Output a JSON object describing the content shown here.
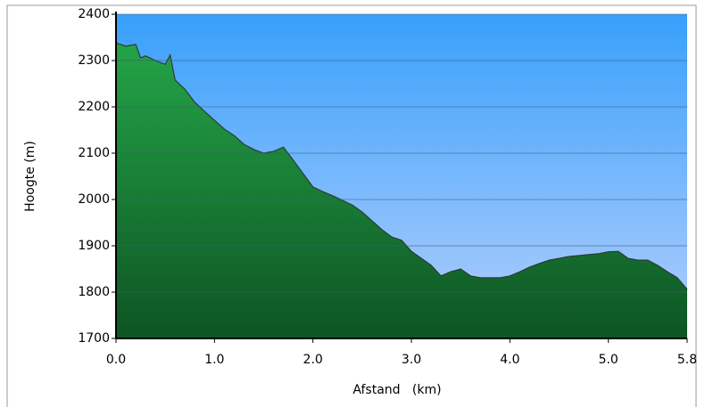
{
  "chart_data": {
    "type": "area",
    "ylabel": "Hoogte (m)",
    "xlabel": "Afstand   (km)",
    "color": "#23a447",
    "x": [
      0,
      0.1,
      0.2,
      0.25,
      0.3,
      0.4,
      0.5,
      0.55,
      0.6,
      0.7,
      0.8,
      0.9,
      1.0,
      1.1,
      1.2,
      1.3,
      1.4,
      1.5,
      1.6,
      1.7,
      1.8,
      1.9,
      2.0,
      2.1,
      2.2,
      2.3,
      2.4,
      2.5,
      2.6,
      2.7,
      2.8,
      2.9,
      3.0,
      3.1,
      3.2,
      3.3,
      3.4,
      3.5,
      3.6,
      3.7,
      3.8,
      3.9,
      4.0,
      4.1,
      4.2,
      4.3,
      4.4,
      4.5,
      4.6,
      4.7,
      4.8,
      4.9,
      5.0,
      5.1,
      5.2,
      5.3,
      5.4,
      5.5,
      5.6,
      5.7,
      5.8
    ],
    "values": [
      2338,
      2331,
      2335,
      2306,
      2310,
      2300,
      2292,
      2312,
      2258,
      2238,
      2210,
      2190,
      2171,
      2152,
      2138,
      2119,
      2108,
      2100,
      2104,
      2113,
      2085,
      2056,
      2027,
      2017,
      2008,
      1998,
      1988,
      1973,
      1954,
      1935,
      1919,
      1912,
      1888,
      1873,
      1858,
      1835,
      1844,
      1850,
      1835,
      1831,
      1831,
      1831,
      1835,
      1844,
      1854,
      1862,
      1869,
      1873,
      1877,
      1879,
      1881,
      1883,
      1887,
      1888,
      1873,
      1869,
      1869,
      1858,
      1844,
      1831,
      1806
    ],
    "xlim": [
      0,
      5.8
    ],
    "ylim": [
      1700,
      2400
    ],
    "xticks": [
      {
        "value": 0,
        "label": "0.0"
      },
      {
        "value": 1,
        "label": "1.0"
      },
      {
        "value": 2,
        "label": "2.0"
      },
      {
        "value": 3,
        "label": "3.0"
      },
      {
        "value": 4,
        "label": "4.0"
      },
      {
        "value": 5,
        "label": "5.0"
      },
      5.8
    ],
    "yticks": [
      1700,
      1800,
      1900,
      2000,
      2100,
      2200,
      2300,
      2400
    ],
    "grid": true
  }
}
